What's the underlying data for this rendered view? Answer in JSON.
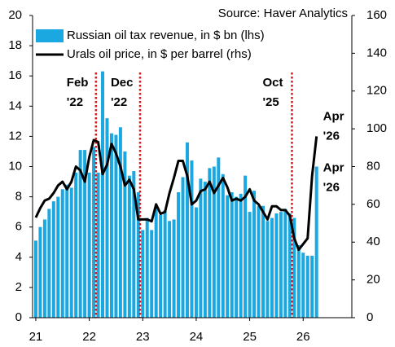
{
  "chart_data": {
    "type": "bar-line",
    "source": "Source: Haver Analytics",
    "x": [
      21,
      21.0833,
      21.1667,
      21.25,
      21.3333,
      21.4167,
      21.5,
      21.5833,
      21.6667,
      21.75,
      21.8333,
      21.9167,
      22,
      22.0833,
      22.1667,
      22.25,
      22.3333,
      22.4167,
      22.5,
      22.5833,
      22.6667,
      22.75,
      22.8333,
      22.9167,
      23,
      23.0833,
      23.1667,
      23.25,
      23.3333,
      23.4167,
      23.5,
      23.5833,
      23.6667,
      23.75,
      23.8333,
      23.9167,
      24,
      24.0833,
      24.1667,
      24.25,
      24.3333,
      24.4167,
      24.5,
      24.5833,
      24.6667,
      24.75,
      24.8333,
      24.9167,
      25,
      25.0833,
      25.1667,
      25.25,
      25.3333,
      25.4167,
      25.5,
      25.5833,
      25.6667,
      25.75,
      25.8333,
      25.9167,
      26,
      26.0833,
      26.1667,
      26.25
    ],
    "series": [
      {
        "name": "Russian oil tax revenue, in $ bn (lhs)",
        "kind": "bar",
        "color": "#1ba8e0",
        "values": [
          5.1,
          6.0,
          6.5,
          7.2,
          7.7,
          8.0,
          8.5,
          8.8,
          8.6,
          9.6,
          11.1,
          11.1,
          9.6,
          11.3,
          9.6,
          16.3,
          13.2,
          12.2,
          12.1,
          12.6,
          11.0,
          9.4,
          9.7,
          8.3,
          5.8,
          6.6,
          5.8,
          7.3,
          6.8,
          7.1,
          6.4,
          6.5,
          8.3,
          9.3,
          11.6,
          10.4,
          7.3,
          9.2,
          9.0,
          9.9,
          10.0,
          10.6,
          9.5,
          8.1,
          8.3,
          8.0,
          8.2,
          9.4,
          7.0,
          8.4,
          7.4,
          7.4,
          6.4,
          6.6,
          6.9,
          7.0,
          7.2,
          6.9,
          6.6,
          4.8,
          4.3,
          4.1,
          4.1,
          10.0
        ]
      },
      {
        "name": "Urals oil price, in $ per barrel (rhs)",
        "kind": "line",
        "color": "#000000",
        "axis": "y2",
        "values": [
          53,
          58,
          62,
          63,
          66,
          70,
          72,
          68,
          72,
          80,
          78,
          72,
          85,
          94,
          93,
          76,
          81,
          92,
          87,
          80,
          70,
          73,
          68,
          52,
          52,
          52,
          51,
          60,
          55,
          56,
          66,
          74,
          83,
          83,
          75,
          60,
          62,
          67,
          68,
          72,
          66,
          70,
          74,
          69,
          62,
          63,
          62,
          64,
          68,
          62,
          60,
          56,
          52,
          59,
          59,
          57,
          57,
          54,
          42,
          36,
          39,
          42,
          75,
          96
        ]
      }
    ],
    "xlim": [
      20.94,
      26.91
    ],
    "xticks": [
      21,
      22,
      23,
      24,
      25,
      26
    ],
    "ylim": [
      0,
      20
    ],
    "yticks": [
      0,
      2,
      4,
      6,
      8,
      10,
      12,
      14,
      16,
      18,
      20
    ],
    "y2lim": [
      0,
      160
    ],
    "y2ticks": [
      0,
      20,
      40,
      60,
      80,
      100,
      120,
      140,
      160
    ],
    "events": [
      {
        "x": 22.125,
        "lines": [
          "Feb",
          "'22"
        ],
        "color": "#d7191c"
      },
      {
        "x": 22.95,
        "lines": [
          "Dec",
          "'22"
        ],
        "color": "#d7191c"
      },
      {
        "x": 25.79,
        "lines": [
          "Oct",
          "'25"
        ],
        "color": "#d7191c"
      }
    ],
    "end_labels": [
      {
        "lines": [
          "Apr",
          "'26"
        ],
        "color": "#000000"
      },
      {
        "lines": [
          "Apr",
          "'26"
        ],
        "color": "#1ba8e0"
      }
    ]
  }
}
